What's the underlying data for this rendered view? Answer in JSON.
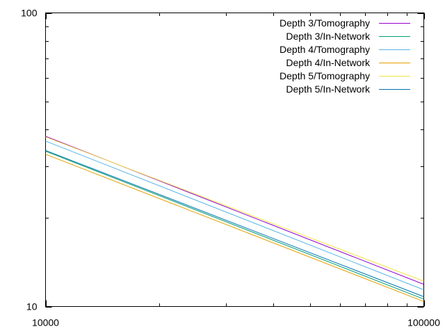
{
  "chart_data": {
    "type": "line",
    "title": "",
    "xlabel": "",
    "ylabel": "",
    "x_scale": "log",
    "y_scale": "log",
    "xlim": [
      10000,
      100000
    ],
    "ylim": [
      10,
      100
    ],
    "x_ticks": [
      10000,
      100000
    ],
    "x_tick_labels": [
      "10000",
      "100000"
    ],
    "y_ticks": [
      10,
      100
    ],
    "y_tick_labels": [
      "10",
      "100"
    ],
    "grid": false,
    "legend_position": "top-right",
    "series": [
      {
        "name": "Depth 3/Tomography",
        "color": "#9400d3",
        "x": [
          10000,
          100000
        ],
        "y": [
          38.0,
          11.9
        ]
      },
      {
        "name": "Depth 3/In-Network",
        "color": "#009e73",
        "x": [
          10000,
          100000
        ],
        "y": [
          33.8,
          10.6
        ]
      },
      {
        "name": "Depth 4/Tomography",
        "color": "#56b4e9",
        "x": [
          10000,
          100000
        ],
        "y": [
          36.6,
          11.4
        ]
      },
      {
        "name": "Depth 4/In-Network",
        "color": "#e69f00",
        "x": [
          10000,
          100000
        ],
        "y": [
          33.0,
          10.4
        ]
      },
      {
        "name": "Depth 5/Tomography",
        "color": "#f0e442",
        "x": [
          10000,
          100000
        ],
        "y": [
          37.8,
          12.2
        ]
      },
      {
        "name": "Depth 5/In-Network",
        "color": "#0072b2",
        "x": [
          10000,
          100000
        ],
        "y": [
          34.0,
          10.8
        ]
      }
    ]
  }
}
